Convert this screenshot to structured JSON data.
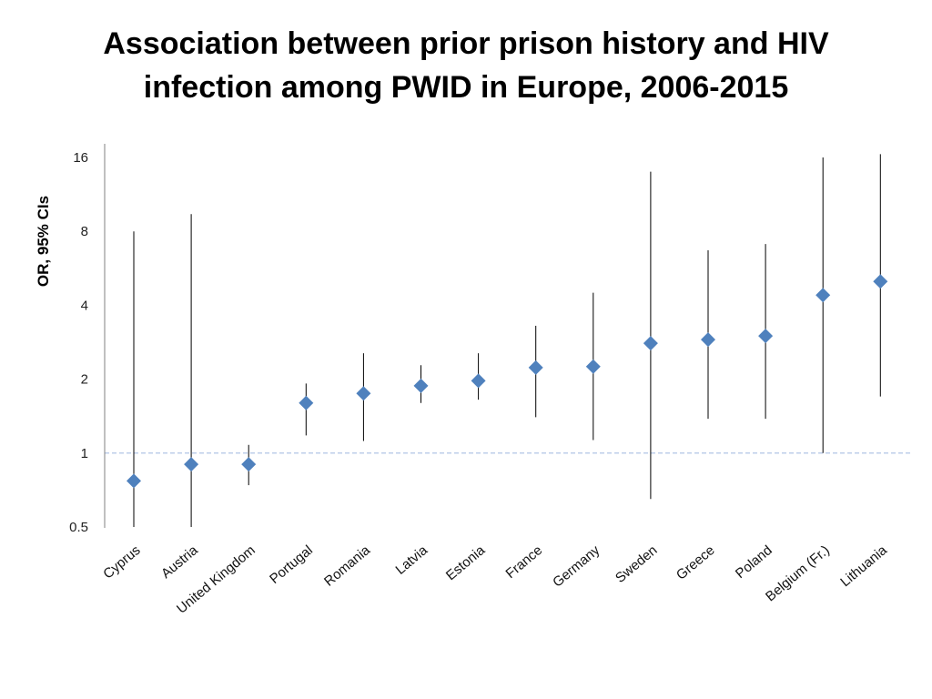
{
  "title_lines": [
    "Association between prior prison history and HIV",
    "infection among PWID in Europe, 2006-2015"
  ],
  "chart_data": {
    "type": "scatter",
    "title": "Association between prior prison history and HIV infection among PWID in Europe, 2006-2015",
    "ylabel": "OR, 95% CIs",
    "xlabel": "",
    "yscale": "log2",
    "ylim": [
      0.5,
      16
    ],
    "yticks": [
      0.5,
      1,
      2,
      4,
      8,
      16
    ],
    "ytick_labels": [
      "0.5",
      "1",
      "2",
      "4",
      "8",
      "16"
    ],
    "reference_line": 1,
    "categories": [
      "Cyprus",
      "Austria",
      "United Kingdom",
      "Portugal",
      "Romania",
      "Latvia",
      "Estonia",
      "France",
      "Germany",
      "Sweden",
      "Greece",
      "Poland",
      "Belgium (Fr.)",
      "Lithuania"
    ],
    "or": [
      0.77,
      0.9,
      0.9,
      1.6,
      1.75,
      1.88,
      1.97,
      2.23,
      2.25,
      2.8,
      2.9,
      3.0,
      4.4,
      5.0
    ],
    "ci_low": [
      0.5,
      0.5,
      0.74,
      1.18,
      1.12,
      1.6,
      1.65,
      1.4,
      1.13,
      0.65,
      1.38,
      1.38,
      1.0,
      1.7
    ],
    "ci_high": [
      8.0,
      9.4,
      1.08,
      1.92,
      2.55,
      2.28,
      2.55,
      3.3,
      4.5,
      14.0,
      6.7,
      7.1,
      16.0,
      16.5
    ],
    "colors": {
      "marker": "#4F81BD",
      "ci_line": "#000000",
      "reference": "#A9BDE3",
      "axis": "#808080"
    }
  }
}
